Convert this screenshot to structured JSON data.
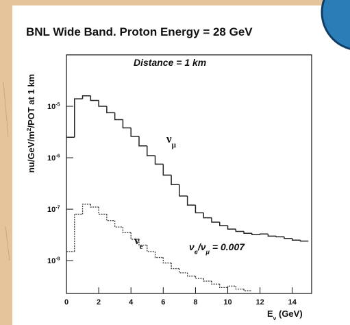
{
  "chart_data": {
    "type": "histogram",
    "title": "BNL Wide Band. Proton Energy = 28 GeV",
    "annotations": [
      "Distance = 1 km",
      "ν_{e}/ν_{μ} = 0.007"
    ],
    "xlabel": "E_{ν} (GeV)",
    "ylabel": "nu/GeV/m^{2}/POT at 1 km",
    "log_y": true,
    "bins": [
      0,
      0.5,
      1,
      1.5,
      2,
      2.5,
      3,
      3.5,
      4,
      4.5,
      5,
      5.5,
      6,
      6.5,
      7,
      7.5,
      8,
      8.5,
      9,
      9.5,
      10,
      10.5,
      11,
      11.5,
      12,
      12.5,
      13,
      13.5,
      14,
      14.5,
      15
    ],
    "series": [
      {
        "name": "ν_{μ}",
        "color": "#222222",
        "style": "solid",
        "values": [
          2.5e-06,
          1.4e-05,
          1.6e-05,
          1.3e-05,
          1e-05,
          7.5e-06,
          5.5e-06,
          3.8e-06,
          2.6e-06,
          1.7e-06,
          1.1e-06,
          7.5e-07,
          4.6e-07,
          3e-07,
          1.8e-07,
          1.2e-07,
          8.5e-08,
          6.8e-08,
          5.6e-08,
          4.8e-08,
          4.1e-08,
          3.7e-08,
          3.4e-08,
          3.2e-08,
          3.3e-08,
          3e-08,
          2.9e-08,
          2.7e-08,
          2.5e-08,
          2.4e-08
        ]
      },
      {
        "name": "ν_{e}",
        "color": "#333333",
        "style": "dotted",
        "values": [
          1.5e-08,
          8e-08,
          1.25e-07,
          1.1e-07,
          8e-08,
          6e-08,
          4.5e-08,
          3.5e-08,
          2.6e-08,
          2e-08,
          1.5e-08,
          1.15e-08,
          9e-09,
          7e-09,
          5.8e-09,
          5e-09,
          4.5e-09,
          4e-09,
          3.5e-09,
          3e-09,
          3.2e-09,
          2.8e-09,
          2.6e-09,
          null,
          null,
          null,
          null,
          null,
          null,
          null
        ]
      }
    ],
    "annotation_color": "#e0202a",
    "xlim": [
      0,
      15.2
    ],
    "xticks": [
      0,
      2,
      4,
      6,
      8,
      10,
      12,
      14
    ],
    "ylim": [
      2.3e-09,
      0.0001
    ],
    "yticks": [
      {
        "value": 1e-05,
        "label": "10^{-5}"
      },
      {
        "value": 1e-06,
        "label": "10^{-6}"
      },
      {
        "value": 1e-07,
        "label": "10^{-7}"
      },
      {
        "value": 1e-08,
        "label": "10^{-8}"
      }
    ]
  }
}
